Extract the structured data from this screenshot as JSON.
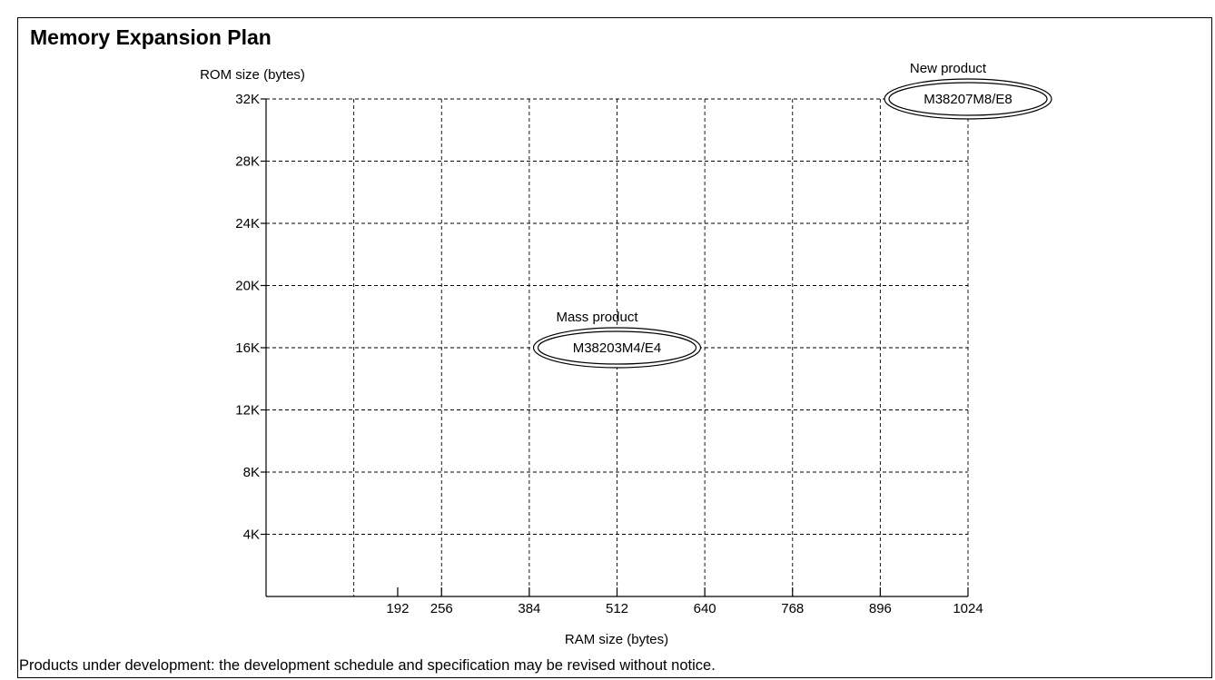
{
  "title": "Memory Expansion Plan",
  "footnote": "Products under development: the development schedule and specification may be revised without notice.",
  "chart_data": {
    "type": "scatter",
    "title": "Memory Expansion Plan",
    "xlabel": "RAM size (bytes)",
    "ylabel": "ROM size (bytes)",
    "xlim": [
      0,
      1024
    ],
    "ylim": [
      0,
      32768
    ],
    "grid": true,
    "x_grid": [
      128,
      256,
      384,
      512,
      640,
      768,
      896,
      1024
    ],
    "y_grid": [
      4096,
      8192,
      12288,
      16384,
      20480,
      24576,
      28672,
      32768
    ],
    "x_ticks": [
      {
        "value": 192,
        "label": "192"
      },
      {
        "value": 256,
        "label": "256"
      },
      {
        "value": 384,
        "label": "384"
      },
      {
        "value": 512,
        "label": "512"
      },
      {
        "value": 640,
        "label": "640"
      },
      {
        "value": 768,
        "label": "768"
      },
      {
        "value": 896,
        "label": "896"
      },
      {
        "value": 1024,
        "label": "1024"
      }
    ],
    "y_ticks": [
      {
        "value": 4096,
        "label": "4K"
      },
      {
        "value": 8192,
        "label": "8K"
      },
      {
        "value": 12288,
        "label": "12K"
      },
      {
        "value": 16384,
        "label": "16K"
      },
      {
        "value": 20480,
        "label": "20K"
      },
      {
        "value": 24576,
        "label": "24K"
      },
      {
        "value": 28672,
        "label": "28K"
      },
      {
        "value": 32768,
        "label": "32K"
      }
    ],
    "products": [
      {
        "label": "M38203M4/E4",
        "status": "Mass product",
        "ram": 512,
        "rom": 16384
      },
      {
        "label": "M38207M8/E8",
        "status": "New product",
        "ram": 1024,
        "rom": 32768
      }
    ]
  }
}
